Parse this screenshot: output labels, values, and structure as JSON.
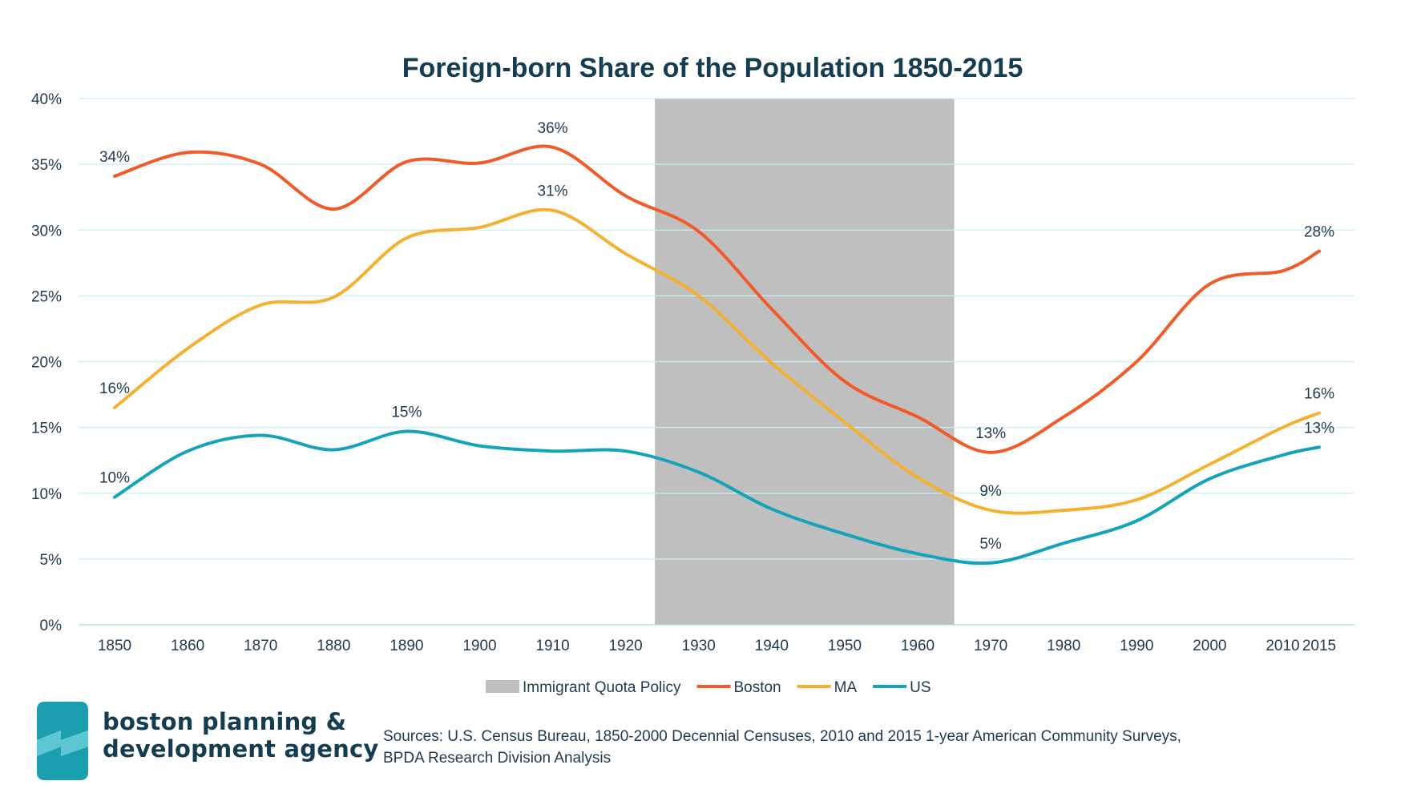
{
  "chart_data": {
    "type": "line",
    "title": "Foreign-born Share of the Population 1850-2015",
    "x": [
      1850,
      1860,
      1870,
      1880,
      1890,
      1900,
      1910,
      1920,
      1930,
      1940,
      1950,
      1960,
      1970,
      1980,
      1990,
      2000,
      2010,
      2015
    ],
    "x_tick_labels": [
      "1850",
      "1860",
      "1870",
      "1880",
      "1890",
      "1900",
      "1910",
      "1920",
      "1930",
      "1940",
      "1950",
      "1960",
      "1970",
      "1980",
      "1990",
      "2000",
      "2010",
      "2015"
    ],
    "ylim": [
      0,
      40
    ],
    "y_tick_labels": [
      "0%",
      "5%",
      "10%",
      "15%",
      "20%",
      "25%",
      "30%",
      "35%",
      "40%"
    ],
    "grid": true,
    "shaded_region": {
      "label": "Immigrant Quota Policy",
      "x_start": 1924,
      "x_end": 1965,
      "color": "#bfbfbf"
    },
    "series": [
      {
        "name": "Boston",
        "color": "#f15a29",
        "values": [
          34.1,
          35.9,
          35.0,
          31.6,
          35.2,
          35.1,
          36.3,
          32.6,
          29.9,
          24.0,
          18.5,
          15.8,
          13.1,
          15.8,
          20.0,
          25.9,
          26.9,
          28.4
        ]
      },
      {
        "name": "MA",
        "color": "#f4b131",
        "values": [
          16.5,
          21.0,
          24.3,
          24.9,
          29.4,
          30.2,
          31.5,
          28.2,
          25.0,
          19.9,
          15.4,
          11.2,
          8.7,
          8.7,
          9.5,
          12.2,
          15.0,
          16.1
        ]
      },
      {
        "name": "US",
        "color": "#14a3b8",
        "values": [
          9.7,
          13.2,
          14.4,
          13.3,
          14.7,
          13.6,
          13.2,
          13.2,
          11.6,
          8.8,
          6.9,
          5.4,
          4.7,
          6.2,
          7.9,
          11.1,
          12.9,
          13.5
        ]
      }
    ],
    "data_labels": [
      {
        "series": "Boston",
        "x": 1850,
        "text": "34%"
      },
      {
        "series": "Boston",
        "x": 1910,
        "text": "36%"
      },
      {
        "series": "Boston",
        "x": 1970,
        "text": "13%"
      },
      {
        "series": "Boston",
        "x": 2015,
        "text": "28%"
      },
      {
        "series": "MA",
        "x": 1850,
        "text": "16%"
      },
      {
        "series": "MA",
        "x": 1910,
        "text": "31%"
      },
      {
        "series": "MA",
        "x": 1970,
        "text": "9%"
      },
      {
        "series": "MA",
        "x": 2015,
        "text": "16%"
      },
      {
        "series": "US",
        "x": 1850,
        "text": "10%"
      },
      {
        "series": "US",
        "x": 1890,
        "text": "15%"
      },
      {
        "series": "US",
        "x": 1970,
        "text": "5%"
      },
      {
        "series": "US",
        "x": 2015,
        "text": "13%"
      }
    ],
    "legend": {
      "placement": "bottom",
      "items": [
        "Immigrant Quota Policy",
        "Boston",
        "MA",
        "US"
      ]
    }
  },
  "branding": {
    "logo_icon": "bpda-logo-icon",
    "line1": "boston planning &",
    "line2": "development agency",
    "logo_colors": [
      "#1b9fae",
      "#5cc7d2"
    ]
  },
  "sources": {
    "line1": "Sources: U.S. Census Bureau, 1850-2000 Decennial Censuses, 2010 and 2015 1-year American Community Surveys,",
    "line2": "BPDA Research Division Analysis"
  },
  "colors": {
    "grid": "#c8eef3",
    "text": "#1f3a4d",
    "title": "#143d52"
  }
}
